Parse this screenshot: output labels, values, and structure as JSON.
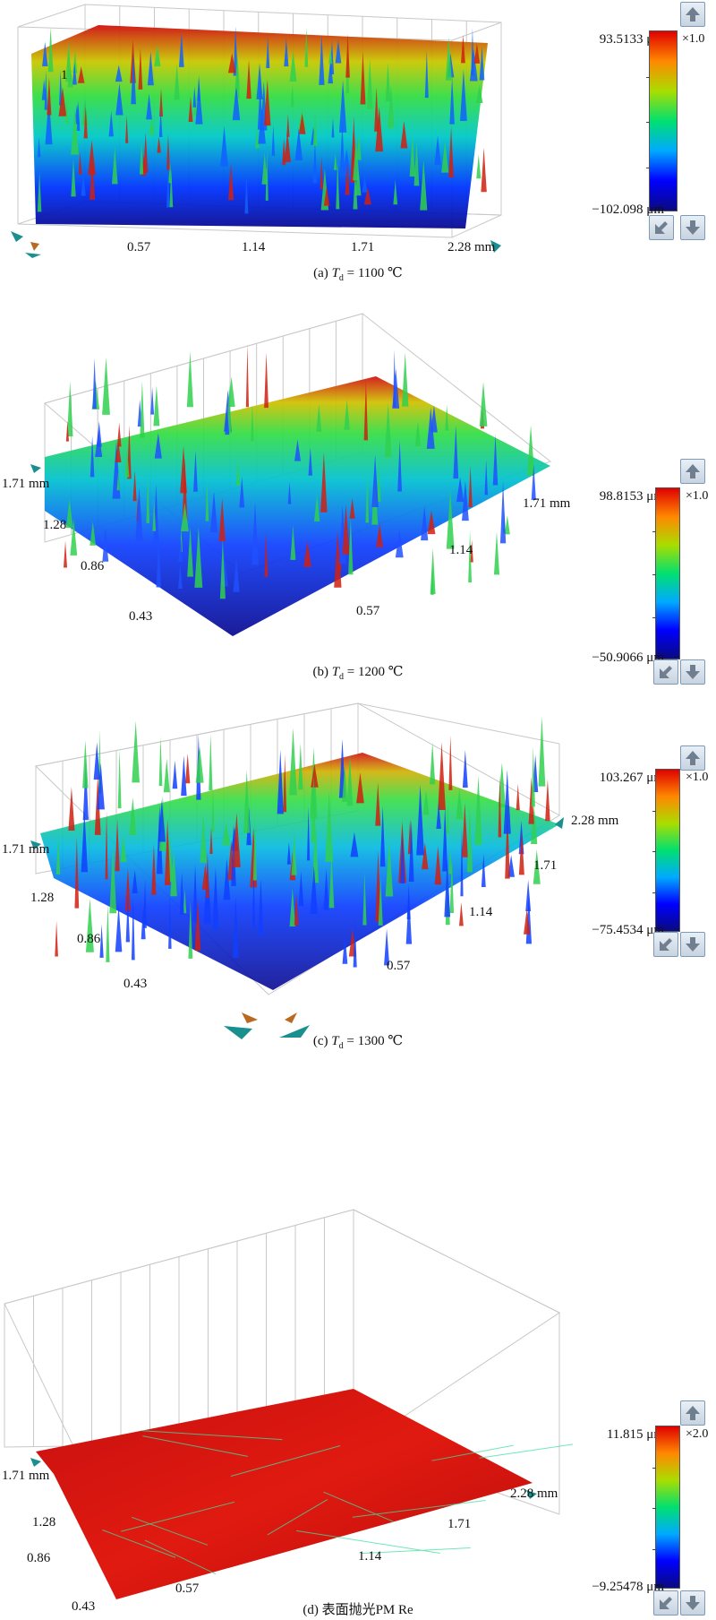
{
  "panels": [
    {
      "caption_prefix": "(a) ",
      "caption_var": "T",
      "caption_sub": "d",
      "caption_suffix": " = 1100 ℃",
      "ticks": [
        "0.57",
        "1.14",
        "1.71",
        "2.28 mm",
        "1"
      ],
      "colorbar": {
        "max": "93.5133 μm",
        "min": "−102.098 μm",
        "multiplier": "×1.0"
      }
    },
    {
      "caption_prefix": "(b) ",
      "caption_var": "T",
      "caption_sub": "d",
      "caption_suffix": " = 1200 ℃",
      "ticks": [
        "1.71 mm",
        "1.28",
        "0.86",
        "0.43",
        "0.57",
        "1.14",
        "1.71 mm"
      ],
      "colorbar": {
        "max": "98.8153 μm",
        "min": "−50.9066 μm",
        "multiplier": "×1.0"
      }
    },
    {
      "caption_prefix": "(c) ",
      "caption_var": "T",
      "caption_sub": "d",
      "caption_suffix": " = 1300 ℃",
      "ticks": [
        "1.71 mm",
        "1.28",
        "0.86",
        "0.43",
        "0.57",
        "1.14",
        "1.71",
        "2.28 mm"
      ],
      "colorbar": {
        "max": "103.267 μm",
        "min": "−75.4534 μm",
        "multiplier": "×1.0"
      }
    },
    {
      "caption_prefix": "(d) 表面抛光PM Re",
      "caption_var": "",
      "caption_sub": "",
      "caption_suffix": "",
      "ticks": [
        "1.71 mm",
        "1.28",
        "0.86",
        "0.43",
        "0.57",
        "1.14",
        "1.71",
        "2.28 mm"
      ],
      "colorbar": {
        "max": "11.815 μm",
        "min": "−9.25478 μm",
        "multiplier": "×2.0"
      }
    }
  ],
  "colors": {
    "grid": "#c8c8c8",
    "colormap": [
      "#0a0a80",
      "#0000ff",
      "#00aaff",
      "#00e070",
      "#aadd00",
      "#ff8800",
      "#e00000"
    ]
  }
}
